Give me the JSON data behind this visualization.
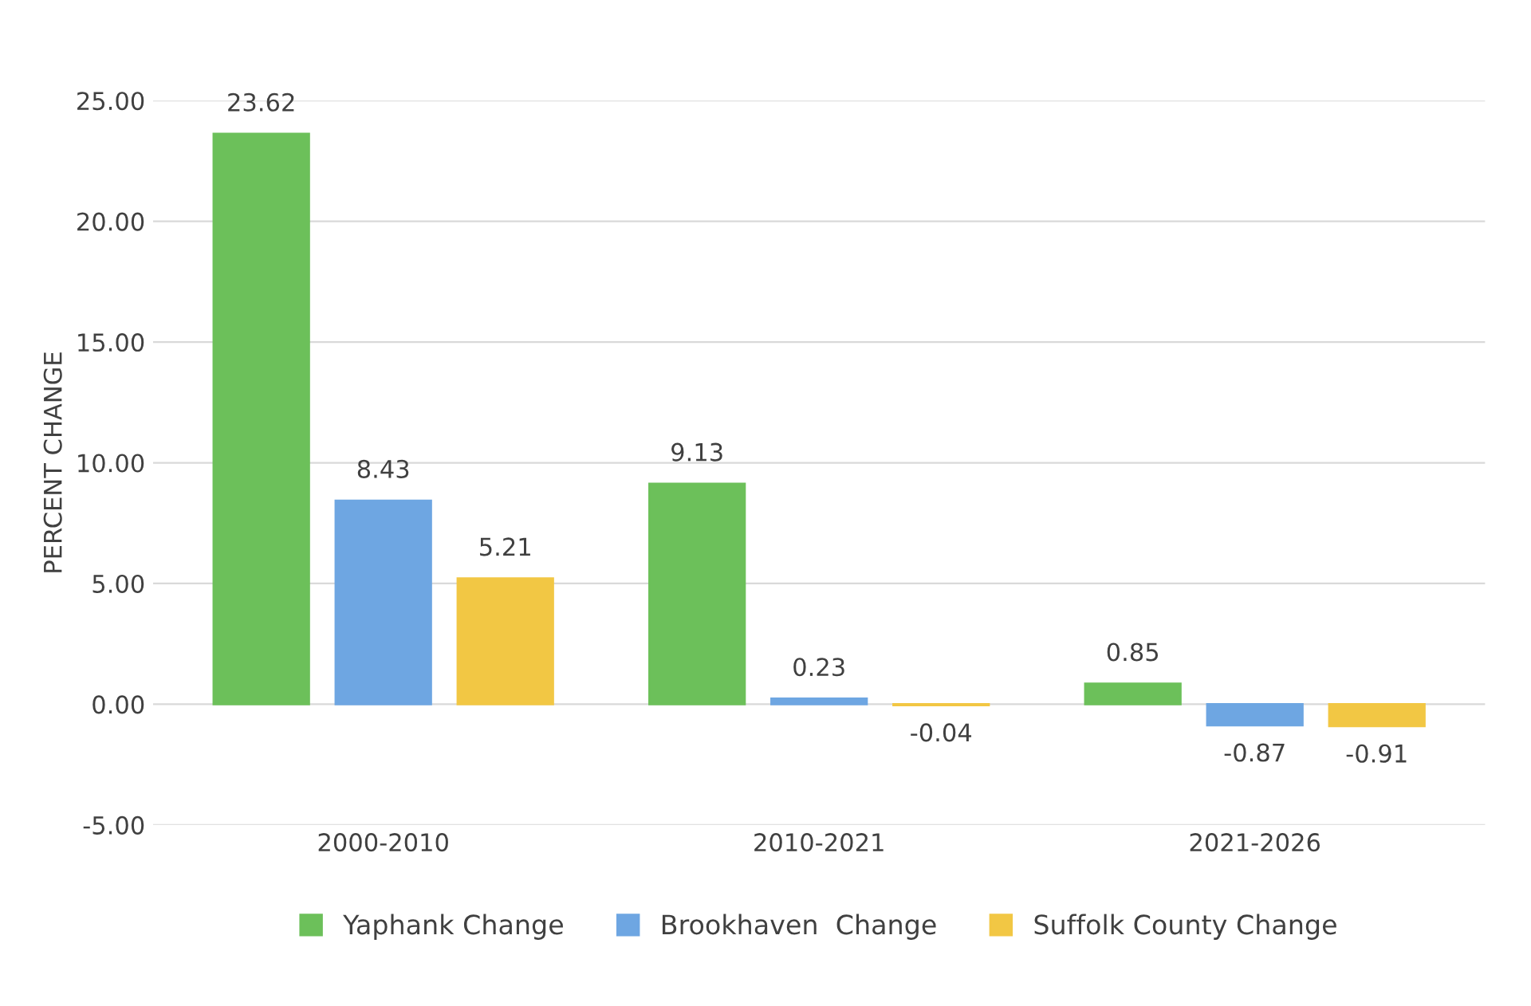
{
  "chart_data": {
    "type": "bar",
    "ylabel": "PERCENT CHANGE",
    "categories": [
      "2000-2010",
      "2010-2021",
      "2021-2026"
    ],
    "series": [
      {
        "name": "Yaphank Change",
        "color": "#6cc05a",
        "values": [
          23.62,
          9.13,
          0.85
        ]
      },
      {
        "name": "Brookhaven  Change",
        "color": "#6ea6e2",
        "values": [
          8.43,
          0.23,
          -0.87
        ]
      },
      {
        "name": "Suffolk County Change",
        "color": "#f2c744",
        "values": [
          5.21,
          -0.04,
          -0.91
        ]
      }
    ],
    "ylim": [
      -5,
      25
    ],
    "yticks": [
      {
        "value": -5,
        "label": "-5.00"
      },
      {
        "value": 0,
        "label": "0.00"
      },
      {
        "value": 5,
        "label": "5.00"
      },
      {
        "value": 10,
        "label": "10.00"
      },
      {
        "value": 15,
        "label": "15.00"
      },
      {
        "value": 20,
        "label": "20.00"
      },
      {
        "value": 25,
        "label": "25.00"
      }
    ],
    "grid": "y",
    "legend": "bottom",
    "data_labels": true
  }
}
